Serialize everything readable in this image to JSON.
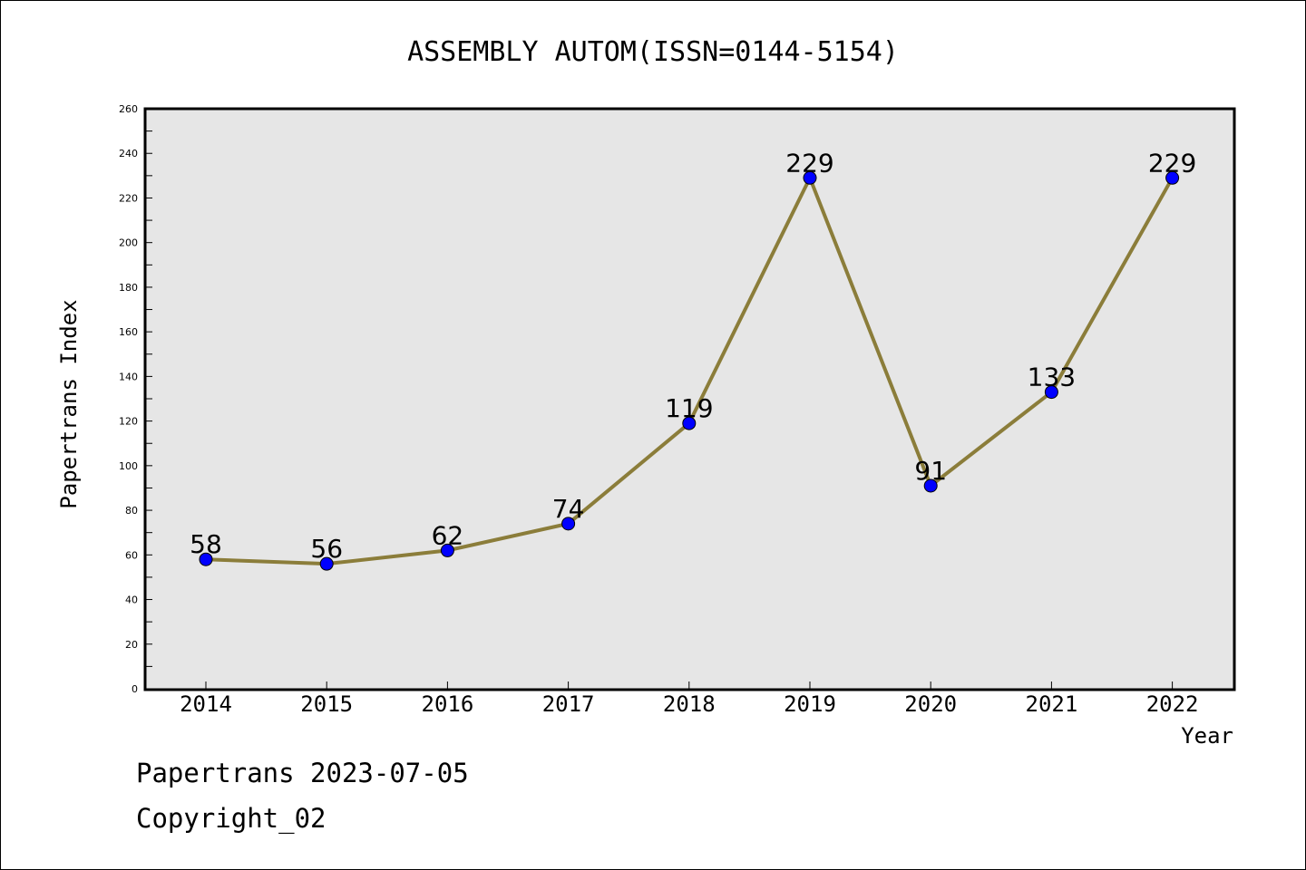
{
  "chart_data": {
    "type": "line",
    "title": "ASSEMBLY AUTOM(ISSN=0144-5154)",
    "xlabel": "Year",
    "ylabel": "Papertrans Index",
    "x": [
      "2014",
      "2015",
      "2016",
      "2017",
      "2018",
      "2019",
      "2020",
      "2021",
      "2022"
    ],
    "values": [
      58,
      56,
      62,
      74,
      119,
      229,
      91,
      133,
      229
    ],
    "data_labels": [
      "58",
      "56",
      "62",
      "74",
      "119",
      "229",
      "91",
      "133",
      "229"
    ],
    "ylim": [
      0,
      260
    ],
    "yticks": [
      "0",
      "20",
      "40",
      "60",
      "80",
      "100",
      "120",
      "140",
      "160",
      "180",
      "200",
      "220",
      "240",
      "260"
    ],
    "grid": false,
    "colors": {
      "line": "#8B7D3A",
      "marker": "#0000FF",
      "plot_bg": "#E6E6E6"
    }
  },
  "footer": {
    "date_line": "Papertrans 2023-07-05",
    "copyright": "Copyright_02"
  }
}
